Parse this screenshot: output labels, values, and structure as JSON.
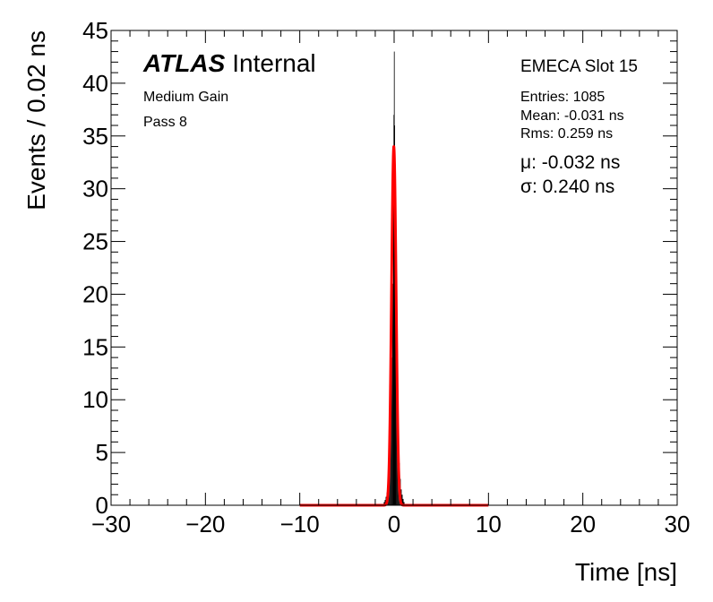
{
  "chart_data": {
    "type": "histogram",
    "xlabel": "Time [ns]",
    "ylabel": "Events / 0.02 ns",
    "xlim": [
      -30,
      30
    ],
    "ylim": [
      0,
      45
    ],
    "x_ticks": [
      -30,
      -20,
      -10,
      0,
      10,
      20,
      30
    ],
    "y_ticks": [
      0,
      5,
      10,
      15,
      20,
      25,
      30,
      35,
      40,
      45
    ],
    "x_tick_labels": [
      "−30",
      "−20",
      "−10",
      "0",
      "10",
      "20",
      "30"
    ],
    "y_tick_labels": [
      "0",
      "5",
      "10",
      "15",
      "20",
      "25",
      "30",
      "35",
      "40",
      "45"
    ],
    "bin_width": 0.02,
    "histogram": {
      "bins": [
        [
          -1.1,
          0.3
        ],
        [
          -1.0,
          0.5
        ],
        [
          -0.9,
          0.8
        ],
        [
          -0.8,
          1.2
        ],
        [
          -0.7,
          2.0
        ],
        [
          -0.6,
          3.0
        ],
        [
          -0.5,
          5.5
        ],
        [
          -0.4,
          9.0
        ],
        [
          -0.3,
          14.0
        ],
        [
          -0.2,
          21.0
        ],
        [
          -0.1,
          30.0
        ],
        [
          -0.06,
          37.0
        ],
        [
          -0.02,
          43.0
        ],
        [
          0.02,
          36.0
        ],
        [
          0.06,
          30.0
        ],
        [
          0.1,
          24.0
        ],
        [
          0.2,
          17.0
        ],
        [
          0.3,
          10.5
        ],
        [
          0.4,
          6.5
        ],
        [
          0.5,
          4.0
        ],
        [
          0.6,
          2.5
        ],
        [
          0.7,
          1.5
        ],
        [
          0.8,
          1.0
        ],
        [
          0.9,
          0.6
        ],
        [
          1.0,
          0.3
        ]
      ]
    },
    "fit": {
      "name": "Gaussian fit",
      "color": "#ff0000",
      "range": [
        -10,
        10
      ],
      "amplitude": 34,
      "mu": -0.032,
      "sigma": 0.24
    },
    "hist_color": "#000000"
  },
  "labels": {
    "atlas": "ATLAS",
    "internal": "Internal",
    "gain": "Medium Gain",
    "pass": "Pass 8",
    "slot": "EMECA Slot 15",
    "entries": "Entries: 1085",
    "mean": "Mean: -0.031 ns",
    "rms": "Rms: 0.259 ns",
    "mu": "μ: -0.032 ns",
    "sigma": "σ: 0.240 ns"
  }
}
